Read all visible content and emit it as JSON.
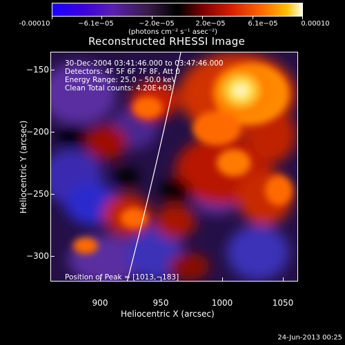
{
  "colorbar": {
    "ticks": [
      "-0.00010",
      "−6.1e−05",
      "−2.0e−05",
      "2.0e−05",
      "6.1e−05",
      "0.00010"
    ],
    "units": "(photons cm⁻² s⁻¹ asec⁻²)"
  },
  "title": "Reconstructed RHESSI Image",
  "info": {
    "line1": "30-Dec-2004 03:41:46.000 to 03:47:46.000",
    "line2": "Detectors: 4F 5F 6F 7F 8F, Att 0",
    "line3": "Energy Range: 25.0 – 50.0 keV",
    "line4": "Clean     Total counts: 4.20E+03",
    "peak": "Position of Peak = [1013,−183]"
  },
  "axes": {
    "xlabel": "Heliocentric X (arcsec)",
    "ylabel": "Heliocentric Y (arcsec)",
    "xticks": [
      "900",
      "950",
      "1000",
      "1050"
    ],
    "yticks": [
      "−150",
      "−200",
      "−250",
      "−300"
    ]
  },
  "footer": "24-Jun-2013 00:25"
}
